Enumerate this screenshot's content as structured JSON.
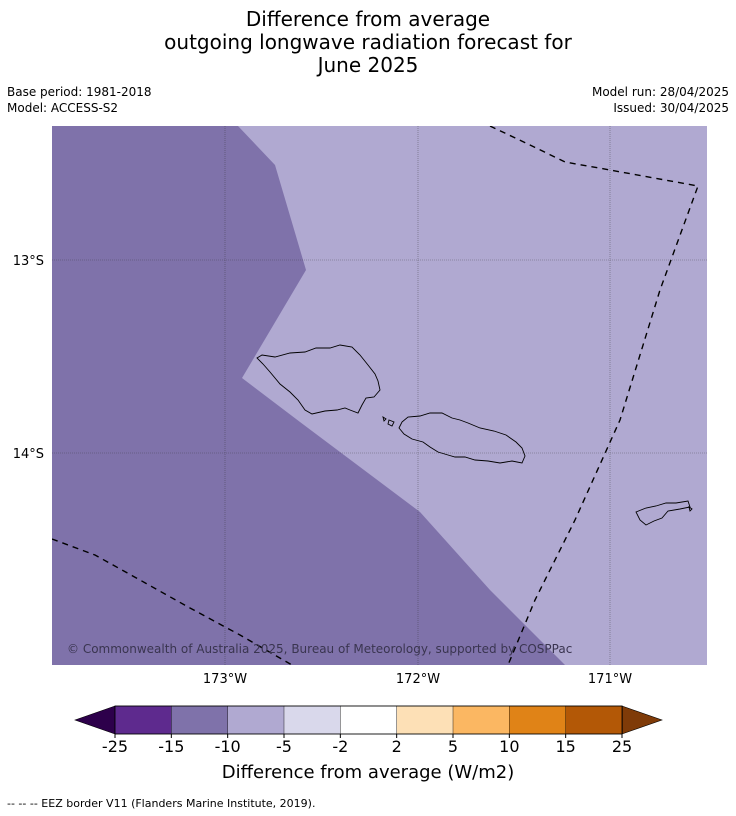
{
  "title": {
    "line1": "Difference from average",
    "line2": "outgoing longwave radiation forecast for",
    "line3": "June 2025"
  },
  "meta_left": {
    "base_period": "Base period: 1981-2018",
    "model": "Model: ACCESS-S2"
  },
  "meta_right": {
    "model_run": "Model run: 28/04/2025",
    "issued": "Issued: 30/04/2025"
  },
  "map": {
    "lat_labels": [
      "13°S",
      "14°S"
    ],
    "lon_labels": [
      "173°W",
      "172°W",
      "171°W"
    ],
    "copyright": "© Commonwealth of Australia 2025, Bureau of Meteorology, supported by COSPPac",
    "regions": [
      {
        "name": "west",
        "category": "-15 to -10",
        "color": "#7f72aa"
      },
      {
        "name": "east",
        "category": "-10 to -5",
        "color": "#b0a9d1"
      }
    ]
  },
  "colorbar": {
    "title": "Difference from average (W/m2)",
    "ticks": [
      "-25",
      "-15",
      "-10",
      "-5",
      "-2",
      "2",
      "5",
      "10",
      "15",
      "25"
    ],
    "extend_low_color": "#2d004b",
    "extend_high_color": "#7f3b08",
    "colors": [
      "#5e2a8e",
      "#7f72aa",
      "#b0a9d1",
      "#d9d8eb",
      "#ffffff",
      "#fde0b6",
      "#fbb762",
      "#e08317",
      "#b35806"
    ]
  },
  "footnote": "--  --  -- EEZ border V11 (Flanders Marine Institute, 2019)."
}
